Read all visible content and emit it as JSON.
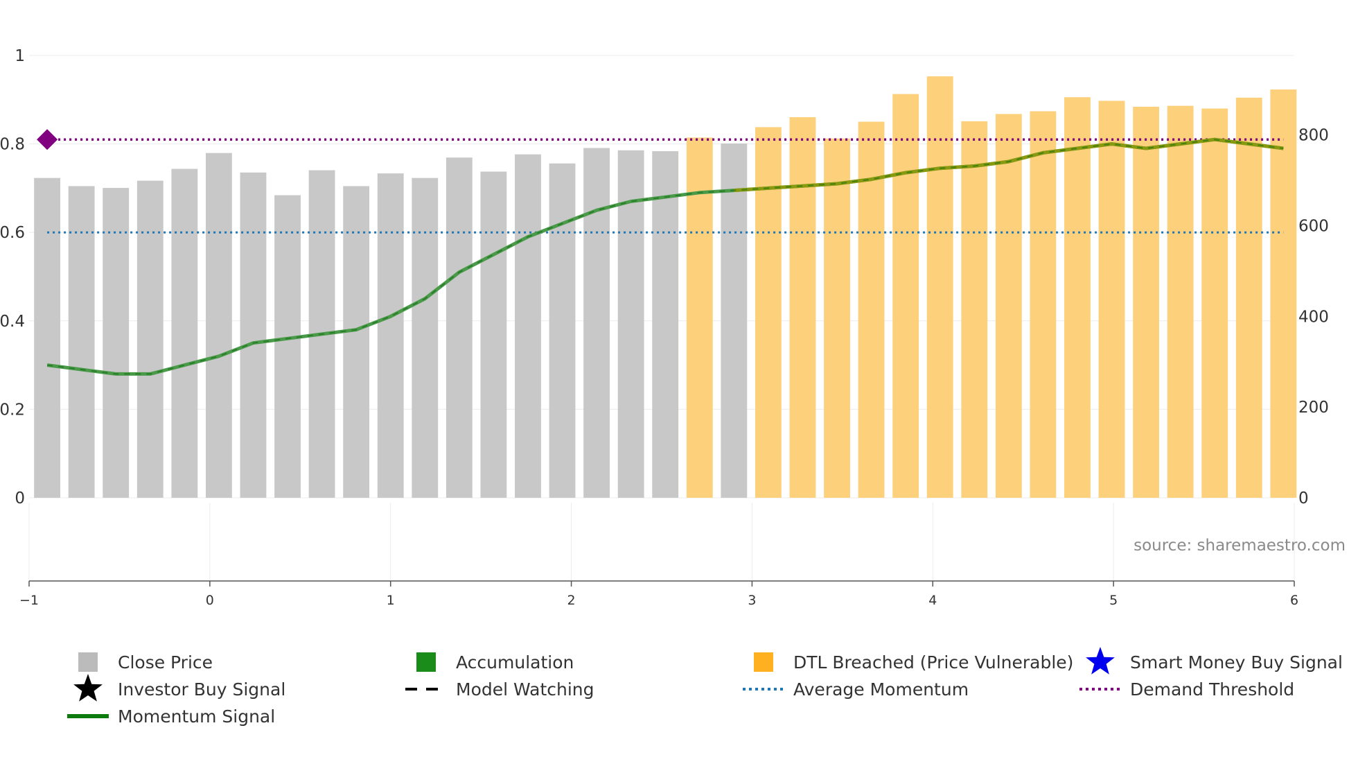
{
  "chart_data": {
    "type": "bar",
    "source_text": "source: sharemaestro.com",
    "left_axis": {
      "range": [
        0,
        1
      ],
      "ticks": [
        0,
        0.2,
        0.4,
        0.6,
        0.8,
        1
      ],
      "tick_labels": [
        "0",
        "0.2",
        "0.4",
        "0.6",
        "0.8",
        "1"
      ]
    },
    "right_axis": {
      "range": [
        0,
        975
      ],
      "ticks": [
        0,
        200,
        400,
        600,
        800
      ],
      "tick_labels": [
        "0",
        "200",
        "400",
        "600",
        "800"
      ]
    },
    "x_axis": {
      "range": [
        -1,
        6
      ],
      "ticks": [
        -1,
        0,
        1,
        2,
        3,
        4,
        5,
        6
      ],
      "tick_labels": [
        "−1",
        "0",
        "1",
        "2",
        "3",
        "4",
        "5",
        "6"
      ]
    },
    "bars": {
      "x": [
        -0.9,
        -0.71,
        -0.52,
        -0.33,
        -0.14,
        0.05,
        0.24,
        0.43,
        0.62,
        0.81,
        1.0,
        1.19,
        1.38,
        1.57,
        1.76,
        1.95,
        2.14,
        2.33,
        2.52,
        2.71,
        2.9,
        3.09,
        3.28,
        3.47,
        3.66,
        3.85,
        4.04,
        4.23,
        4.42,
        4.61,
        4.8,
        4.99,
        5.18,
        5.37,
        5.56,
        5.75,
        5.94
      ],
      "close": [
        705,
        687,
        683,
        699,
        725,
        760,
        717,
        667,
        722,
        687,
        715,
        705,
        750,
        719,
        757,
        737,
        771,
        766,
        764,
        794,
        781,
        817,
        839,
        792,
        829,
        890,
        929,
        830,
        846,
        852,
        883,
        875,
        862,
        864,
        858,
        882,
        900
      ],
      "state": [
        "close",
        "close",
        "close",
        "close",
        "close",
        "close",
        "close",
        "close",
        "close",
        "close",
        "close",
        "close",
        "close",
        "close",
        "close",
        "close",
        "close",
        "close",
        "close",
        "dtl",
        "close",
        "dtl",
        "dtl",
        "dtl",
        "dtl",
        "dtl",
        "dtl",
        "dtl",
        "dtl",
        "dtl",
        "dtl",
        "dtl",
        "dtl",
        "dtl",
        "dtl",
        "dtl",
        "dtl"
      ]
    },
    "momentum": {
      "x": [
        -0.9,
        -0.71,
        -0.52,
        -0.33,
        -0.14,
        0.05,
        0.24,
        0.43,
        0.62,
        0.81,
        1.0,
        1.19,
        1.38,
        1.57,
        1.76,
        1.95,
        2.14,
        2.33,
        2.52,
        2.71,
        2.9,
        3.09,
        3.28,
        3.47,
        3.66,
        3.85,
        4.04,
        4.23,
        4.42,
        4.61,
        4.8,
        4.99,
        5.18,
        5.37,
        5.56,
        5.75,
        5.94
      ],
      "y": [
        0.3,
        0.29,
        0.28,
        0.28,
        0.3,
        0.32,
        0.35,
        0.36,
        0.37,
        0.38,
        0.41,
        0.45,
        0.51,
        0.55,
        0.59,
        0.62,
        0.65,
        0.67,
        0.68,
        0.69,
        0.695,
        0.7,
        0.705,
        0.71,
        0.72,
        0.735,
        0.745,
        0.75,
        0.76,
        0.78,
        0.79,
        0.8,
        0.79,
        0.8,
        0.81,
        0.8,
        0.79
      ]
    },
    "average_momentum": 0.6,
    "demand_threshold": 0.81,
    "threshold_marker": {
      "x": -0.9,
      "y": 0.81
    },
    "legend": [
      {
        "label": "Close Price",
        "symbol": "square",
        "color": "#bbbbbb"
      },
      {
        "label": "Accumulation",
        "symbol": "square",
        "color": "#1a8c1a"
      },
      {
        "label": "DTL Breached (Price Vulnerable)",
        "symbol": "square",
        "color": "#ffb020"
      },
      {
        "label": "Smart Money Buy Signal",
        "symbol": "star",
        "color": "#0000ee"
      },
      {
        "label": "Investor Buy Signal",
        "symbol": "star",
        "color": "#000000"
      },
      {
        "label": "Model Watching",
        "symbol": "dash",
        "color": "#000000"
      },
      {
        "label": "Average Momentum",
        "symbol": "dotted",
        "color": "#1f77b4"
      },
      {
        "label": "Demand Threshold",
        "symbol": "dotted",
        "color": "#800080"
      },
      {
        "label": "Momentum Signal",
        "symbol": "line",
        "color": "#0c7a0c"
      }
    ]
  }
}
